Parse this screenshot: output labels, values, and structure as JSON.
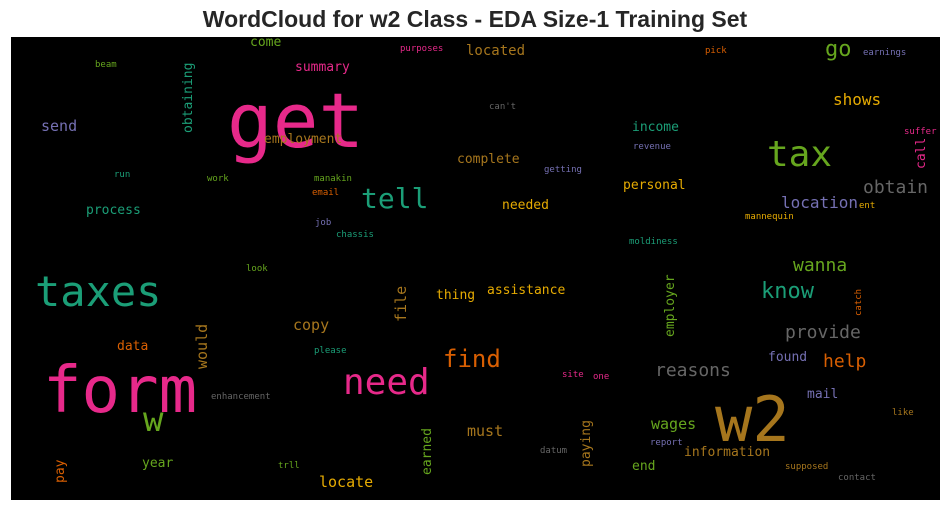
{
  "chart_data": {
    "type": "wordcloud",
    "title": "WordCloud for w2 Class - EDA Size-1 Training Set",
    "background": "#000000",
    "palette": "Dark2",
    "words": [
      {
        "text": "get",
        "weight": 1.0,
        "color": "#e7298a",
        "orientation": "horizontal"
      },
      {
        "text": "form",
        "weight": 0.95,
        "color": "#e7298a",
        "orientation": "horizontal"
      },
      {
        "text": "w2",
        "weight": 0.95,
        "color": "#a6761d",
        "orientation": "horizontal"
      },
      {
        "text": "taxes",
        "weight": 0.7,
        "color": "#1b9e77",
        "orientation": "horizontal"
      },
      {
        "text": "need",
        "weight": 0.62,
        "color": "#e7298a",
        "orientation": "horizontal"
      },
      {
        "text": "tax",
        "weight": 0.58,
        "color": "#66a61e",
        "orientation": "horizontal"
      },
      {
        "text": "w",
        "weight": 0.55,
        "color": "#66a61e",
        "orientation": "horizontal"
      },
      {
        "text": "tell",
        "weight": 0.45,
        "color": "#1b9e77",
        "orientation": "horizontal"
      },
      {
        "text": "find",
        "weight": 0.4,
        "color": "#d95f02",
        "orientation": "horizontal"
      },
      {
        "text": "know",
        "weight": 0.38,
        "color": "#1b9e77",
        "orientation": "horizontal"
      },
      {
        "text": "go",
        "weight": 0.36,
        "color": "#66a61e",
        "orientation": "horizontal"
      },
      {
        "text": "obtain",
        "weight": 0.32,
        "color": "#666666",
        "orientation": "horizontal"
      },
      {
        "text": "wanna",
        "weight": 0.31,
        "color": "#66a61e",
        "orientation": "horizontal"
      },
      {
        "text": "provide",
        "weight": 0.31,
        "color": "#666666",
        "orientation": "horizontal"
      },
      {
        "text": "reasons",
        "weight": 0.3,
        "color": "#666666",
        "orientation": "horizontal"
      },
      {
        "text": "help",
        "weight": 0.3,
        "color": "#d95f02",
        "orientation": "horizontal"
      },
      {
        "text": "shows",
        "weight": 0.27,
        "color": "#e6ab02",
        "orientation": "horizontal"
      },
      {
        "text": "location",
        "weight": 0.27,
        "color": "#7570b3",
        "orientation": "horizontal"
      },
      {
        "text": "copy",
        "weight": 0.26,
        "color": "#a6761d",
        "orientation": "horizontal"
      },
      {
        "text": "would",
        "weight": 0.26,
        "color": "#a6761d",
        "orientation": "vertical"
      },
      {
        "text": "file",
        "weight": 0.26,
        "color": "#a6761d",
        "orientation": "vertical"
      },
      {
        "text": "wages",
        "weight": 0.26,
        "color": "#66a61e",
        "orientation": "horizontal"
      },
      {
        "text": "locate",
        "weight": 0.25,
        "color": "#e6ab02",
        "orientation": "horizontal"
      },
      {
        "text": "send",
        "weight": 0.24,
        "color": "#7570b3",
        "orientation": "horizontal"
      },
      {
        "text": "must",
        "weight": 0.24,
        "color": "#a6761d",
        "orientation": "horizontal"
      },
      {
        "text": "located",
        "weight": 0.23,
        "color": "#a6761d",
        "orientation": "horizontal"
      },
      {
        "text": "call",
        "weight": 0.22,
        "color": "#e7298a",
        "orientation": "vertical"
      },
      {
        "text": "complete",
        "weight": 0.21,
        "color": "#a6761d",
        "orientation": "horizontal"
      },
      {
        "text": "personal",
        "weight": 0.21,
        "color": "#e6ab02",
        "orientation": "horizontal"
      },
      {
        "text": "information",
        "weight": 0.21,
        "color": "#a6761d",
        "orientation": "horizontal"
      },
      {
        "text": "income",
        "weight": 0.21,
        "color": "#1b9e77",
        "orientation": "horizontal"
      },
      {
        "text": "employer",
        "weight": 0.21,
        "color": "#66a61e",
        "orientation": "vertical"
      },
      {
        "text": "paying",
        "weight": 0.21,
        "color": "#a6761d",
        "orientation": "vertical"
      },
      {
        "text": "earned",
        "weight": 0.21,
        "color": "#66a61e",
        "orientation": "vertical"
      },
      {
        "text": "obtaining",
        "weight": 0.2,
        "color": "#1b9e77",
        "orientation": "vertical"
      },
      {
        "text": "employment",
        "weight": 0.2,
        "color": "#a6761d",
        "orientation": "horizontal"
      },
      {
        "text": "summary",
        "weight": 0.2,
        "color": "#e7298a",
        "orientation": "horizontal"
      },
      {
        "text": "come",
        "weight": 0.2,
        "color": "#66a61e",
        "orientation": "horizontal"
      },
      {
        "text": "process",
        "weight": 0.2,
        "color": "#1b9e77",
        "orientation": "horizontal"
      },
      {
        "text": "needed",
        "weight": 0.2,
        "color": "#e6ab02",
        "orientation": "horizontal"
      },
      {
        "text": "assistance",
        "weight": 0.2,
        "color": "#e6ab02",
        "orientation": "horizontal"
      },
      {
        "text": "thing",
        "weight": 0.2,
        "color": "#e6ab02",
        "orientation": "horizontal"
      },
      {
        "text": "data",
        "weight": 0.2,
        "color": "#d95f02",
        "orientation": "horizontal"
      },
      {
        "text": "year",
        "weight": 0.2,
        "color": "#66a61e",
        "orientation": "horizontal"
      },
      {
        "text": "pay",
        "weight": 0.2,
        "color": "#d95f02",
        "orientation": "vertical"
      },
      {
        "text": "end",
        "weight": 0.2,
        "color": "#66a61e",
        "orientation": "horizontal"
      },
      {
        "text": "mail",
        "weight": 0.2,
        "color": "#7570b3",
        "orientation": "horizontal"
      },
      {
        "text": "found",
        "weight": 0.2,
        "color": "#7570b3",
        "orientation": "horizontal"
      },
      {
        "text": "earnings",
        "weight": 0.1,
        "color": "#7570b3",
        "orientation": "horizontal"
      },
      {
        "text": "pick",
        "weight": 0.1,
        "color": "#d95f02",
        "orientation": "horizontal"
      },
      {
        "text": "purposes",
        "weight": 0.1,
        "color": "#e7298a",
        "orientation": "horizontal"
      },
      {
        "text": "beam",
        "weight": 0.1,
        "color": "#66a61e",
        "orientation": "horizontal"
      },
      {
        "text": "can't",
        "weight": 0.1,
        "color": "#666666",
        "orientation": "horizontal"
      },
      {
        "text": "suffer",
        "weight": 0.1,
        "color": "#e7298a",
        "orientation": "horizontal"
      },
      {
        "text": "revenue",
        "weight": 0.1,
        "color": "#7570b3",
        "orientation": "horizontal"
      },
      {
        "text": "getting",
        "weight": 0.1,
        "color": "#7570b3",
        "orientation": "horizontal"
      },
      {
        "text": "run",
        "weight": 0.1,
        "color": "#1b9e77",
        "orientation": "horizontal"
      },
      {
        "text": "work",
        "weight": 0.1,
        "color": "#66a61e",
        "orientation": "horizontal"
      },
      {
        "text": "manakin",
        "weight": 0.1,
        "color": "#66a61e",
        "orientation": "horizontal"
      },
      {
        "text": "email",
        "weight": 0.1,
        "color": "#d95f02",
        "orientation": "horizontal"
      },
      {
        "text": "job",
        "weight": 0.1,
        "color": "#7570b3",
        "orientation": "horizontal"
      },
      {
        "text": "chassis",
        "weight": 0.1,
        "color": "#1b9e77",
        "orientation": "horizontal"
      },
      {
        "text": "mannequin",
        "weight": 0.1,
        "color": "#e6ab02",
        "orientation": "horizontal"
      },
      {
        "text": "ent",
        "weight": 0.1,
        "color": "#e6ab02",
        "orientation": "horizontal"
      },
      {
        "text": "moldiness",
        "weight": 0.1,
        "color": "#1b9e77",
        "orientation": "horizontal"
      },
      {
        "text": "look",
        "weight": 0.1,
        "color": "#66a61e",
        "orientation": "horizontal"
      },
      {
        "text": "catch",
        "weight": 0.1,
        "color": "#d95f02",
        "orientation": "vertical"
      },
      {
        "text": "please",
        "weight": 0.1,
        "color": "#1b9e77",
        "orientation": "horizontal"
      },
      {
        "text": "site",
        "weight": 0.1,
        "color": "#e7298a",
        "orientation": "horizontal"
      },
      {
        "text": "one",
        "weight": 0.1,
        "color": "#e7298a",
        "orientation": "horizontal"
      },
      {
        "text": "enhancement",
        "weight": 0.1,
        "color": "#666666",
        "orientation": "horizontal"
      },
      {
        "text": "like",
        "weight": 0.1,
        "color": "#a6761d",
        "orientation": "horizontal"
      },
      {
        "text": "report",
        "weight": 0.1,
        "color": "#7570b3",
        "orientation": "horizontal"
      },
      {
        "text": "datum",
        "weight": 0.1,
        "color": "#666666",
        "orientation": "horizontal"
      },
      {
        "text": "trll",
        "weight": 0.1,
        "color": "#66a61e",
        "orientation": "horizontal"
      },
      {
        "text": "supposed",
        "weight": 0.1,
        "color": "#a6761d",
        "orientation": "horizontal"
      },
      {
        "text": "contact",
        "weight": 0.1,
        "color": "#666666",
        "orientation": "horizontal"
      }
    ]
  }
}
